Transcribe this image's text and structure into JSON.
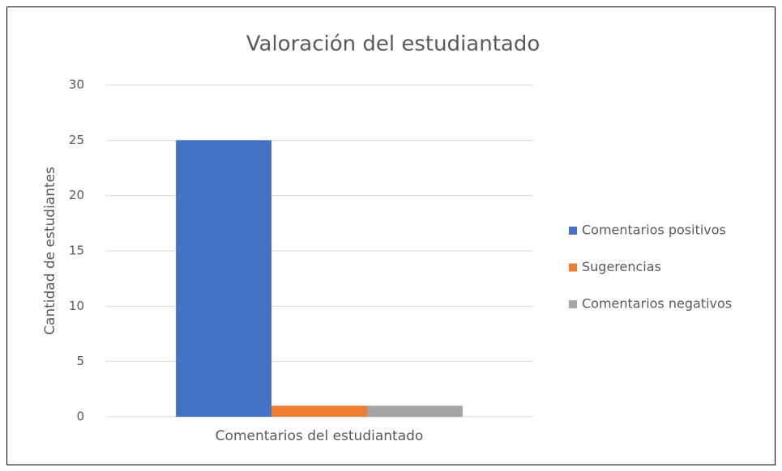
{
  "chart_data": {
    "type": "bar",
    "title": "Valoración del estudiantado",
    "y_label": "Cantidad de estudiantes",
    "categories": [
      "Comentarios del estudiantado"
    ],
    "series": [
      {
        "name": "Comentarios positivos",
        "color": "#4472c4",
        "values": [
          25
        ]
      },
      {
        "name": "Sugerencias",
        "color": "#ed7d31",
        "values": [
          1
        ]
      },
      {
        "name": "Comentarios negativos",
        "color": "#a5a5a5",
        "values": [
          1
        ]
      }
    ],
    "ylim": [
      0,
      30
    ],
    "yticks": [
      0,
      5,
      10,
      15,
      20,
      25,
      30
    ],
    "grid": true,
    "legend": "right"
  }
}
